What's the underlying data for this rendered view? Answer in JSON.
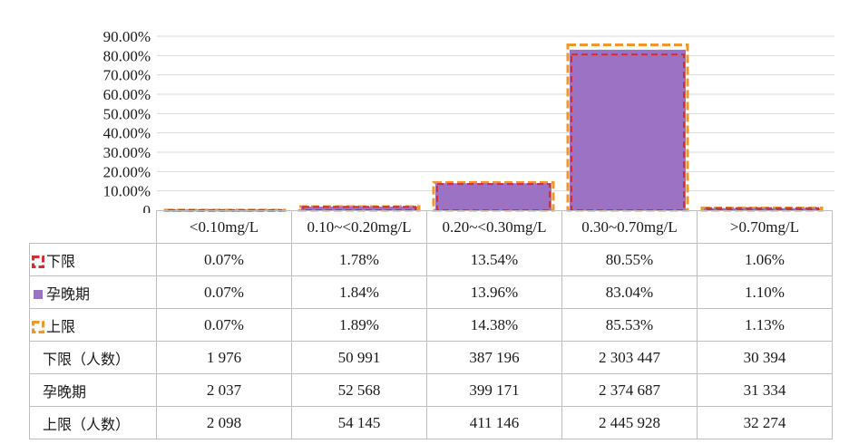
{
  "chart_data": {
    "type": "bar",
    "categories": [
      "<0.10mg/L",
      "0.10~<0.20mg/L",
      "0.20~<0.30mg/L",
      "0.30~0.70mg/L",
      ">0.70mg/L"
    ],
    "ytick_labels": [
      "0",
      "10.00%",
      "20.00%",
      "30.00%",
      "40.00%",
      "50.00%",
      "60.00%",
      "70.00%",
      "80.00%",
      "90.00%"
    ],
    "ylim": [
      0,
      90
    ],
    "grid": true,
    "series": [
      {
        "name": "下限",
        "values": [
          0.07,
          1.78,
          13.54,
          80.55,
          1.06
        ],
        "labels": [
          "0.07%",
          "1.78%",
          "13.54%",
          "80.55%",
          "1.06%"
        ],
        "style": "dashed-outline",
        "color": "#d32f2f"
      },
      {
        "name": "孕晚期",
        "values": [
          0.07,
          1.84,
          13.96,
          83.04,
          1.1
        ],
        "labels": [
          "0.07%",
          "1.84%",
          "13.96%",
          "83.04%",
          "1.10%"
        ],
        "style": "filled-bar",
        "color": "#9b72c4"
      },
      {
        "name": "上限",
        "values": [
          0.07,
          1.89,
          14.38,
          85.53,
          1.13
        ],
        "labels": [
          "0.07%",
          "1.89%",
          "14.38%",
          "85.53%",
          "1.13%"
        ],
        "style": "dashed-outline",
        "color": "#f0962a"
      }
    ],
    "count_rows": [
      {
        "name": "下限（人数）",
        "values": [
          "1 976",
          "50 991",
          "387 196",
          "2 303 447",
          "30 394"
        ]
      },
      {
        "name": "孕晚期",
        "values": [
          "2 037",
          "52 568",
          "399 171",
          "2 374 687",
          "31 334"
        ]
      },
      {
        "name": "上限（人数）",
        "values": [
          "2 098",
          "54 145",
          "411 146",
          "2 445 928",
          "32 274"
        ]
      }
    ]
  }
}
